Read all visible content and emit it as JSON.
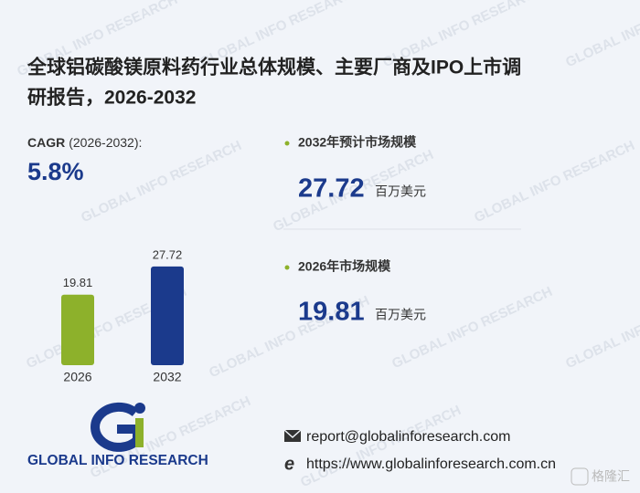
{
  "title_line1": "全球铝碳酸镁原料药行业总体规模、主要厂商及IPO上市调",
  "title_line2": "研报告，2026-2032",
  "cagr_label": "CAGR",
  "cagr_period": "(2026-2032):",
  "cagr_value": "5.8%",
  "stat_2032_label": "2032年预计市场规模",
  "stat_2026_label": "2026年市场规模",
  "unit": "百万美元",
  "logo_text": "GLOBAL INFO RESEARCH",
  "email": "report@globalinforesearch.com",
  "website": "https://www.globalinforesearch.com.cn",
  "watermark": "GLOBAL INFO RESEARCH",
  "corner_badge": "格隆汇",
  "chart_data": {
    "type": "bar",
    "categories": [
      "2026",
      "2032"
    ],
    "values": [
      19.81,
      27.72
    ],
    "series_colors": [
      "#8db12b",
      "#1b3a8c"
    ]
  }
}
